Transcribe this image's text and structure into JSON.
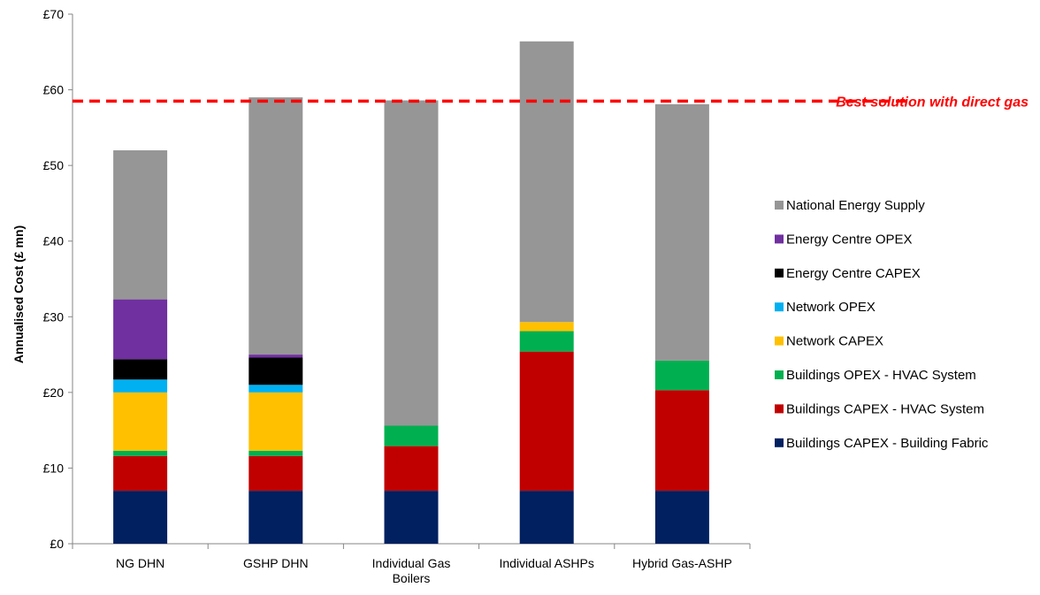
{
  "chart_data": {
    "type": "bar",
    "stacked": true,
    "title": "",
    "xlabel": "",
    "ylabel": "Annualised Cost (£ mn)",
    "ylim": [
      0,
      70
    ],
    "y_ticks": [
      "£0",
      "£10",
      "£20",
      "£30",
      "£40",
      "£50",
      "£60",
      "£70"
    ],
    "y_tick_values": [
      0,
      10,
      20,
      30,
      40,
      50,
      60,
      70
    ],
    "grid": false,
    "legend_position": "right",
    "categories": [
      [
        "NG DHN"
      ],
      [
        "GSHP DHN"
      ],
      [
        "Individual Gas",
        "Boilers"
      ],
      [
        "Individual ASHPs"
      ],
      [
        "Hybrid Gas-ASHP"
      ]
    ],
    "series": [
      {
        "name": "Buildings CAPEX - Building Fabric",
        "color": "#002060",
        "values": [
          7.0,
          7.0,
          7.0,
          7.0,
          7.0
        ]
      },
      {
        "name": "Buildings CAPEX - HVAC System",
        "color": "#c00000",
        "values": [
          4.6,
          4.6,
          5.9,
          18.4,
          13.3
        ]
      },
      {
        "name": "Buildings OPEX - HVAC System",
        "color": "#00b050",
        "values": [
          0.7,
          0.7,
          2.7,
          2.7,
          3.9
        ]
      },
      {
        "name": "Network CAPEX",
        "color": "#ffc000",
        "values": [
          7.7,
          7.7,
          0,
          1.2,
          0
        ]
      },
      {
        "name": "Network OPEX",
        "color": "#00b0f0",
        "values": [
          1.7,
          1.0,
          0,
          0,
          0
        ]
      },
      {
        "name": "Energy Centre CAPEX",
        "color": "#000000",
        "values": [
          2.7,
          3.6,
          0,
          0,
          0
        ]
      },
      {
        "name": "Energy Centre OPEX",
        "color": "#7030a0",
        "values": [
          7.9,
          0.4,
          0,
          0,
          0
        ]
      },
      {
        "name": "National Energy Supply",
        "color": "#969696",
        "values": [
          19.7,
          34.0,
          43.0,
          37.1,
          33.9
        ]
      }
    ],
    "reference_line": {
      "value": 58.5,
      "label": "Best solution with direct gas",
      "color": "#ff0000"
    }
  }
}
